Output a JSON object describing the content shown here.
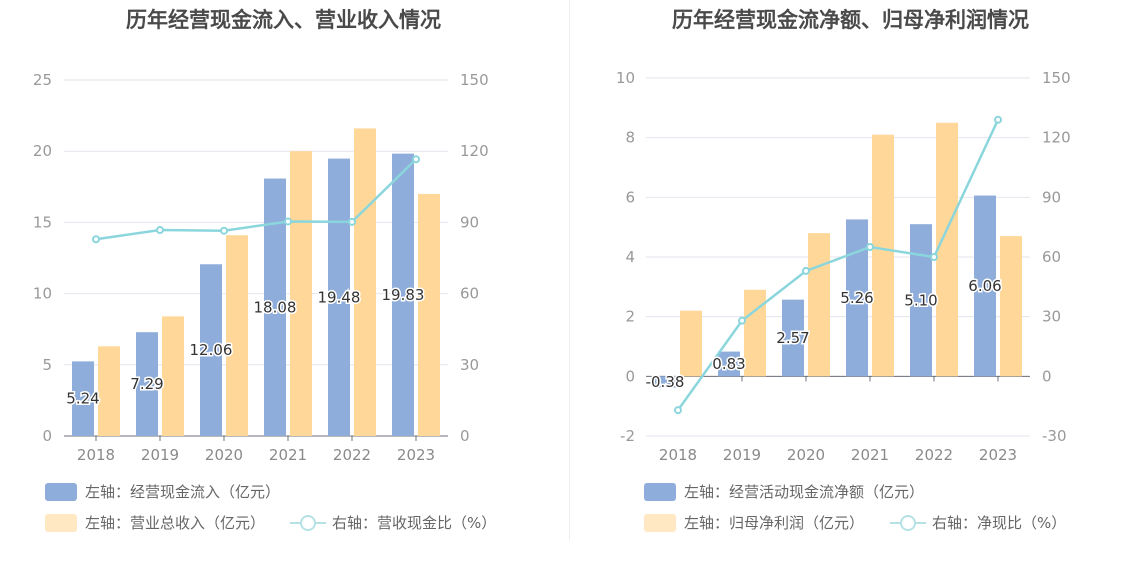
{
  "charts": [
    {
      "title": "历年经营现金流入、营业收入情况",
      "legend": {
        "bar1": "左轴：经营现金流入（亿元）",
        "bar2": "左轴：营业总收入（亿元）",
        "line": "右轴：营收现金比（%）"
      }
    },
    {
      "title": "历年经营现金流净额、归母净利润情况",
      "legend": {
        "bar1": "左轴：经营活动现金流净额（亿元）",
        "bar2": "左轴：归母净利润（亿元）",
        "line": "右轴：净现比（%）"
      }
    }
  ],
  "colors": {
    "bar1": "#8eaddb",
    "bar2": "#ffd899",
    "line": "#8bd6dc",
    "grid": "#e4e6ee"
  },
  "chart_data": [
    {
      "type": "bar",
      "title": "历年经营现金流入、营业收入情况",
      "categories": [
        "2018",
        "2019",
        "2020",
        "2021",
        "2022",
        "2023"
      ],
      "left_axis": {
        "ticks": [
          0,
          5,
          10,
          15,
          20,
          25
        ],
        "min": 0,
        "max": 25
      },
      "right_axis": {
        "ticks": [
          0,
          30,
          60,
          90,
          120,
          150
        ],
        "min": 0,
        "max": 150
      },
      "series": [
        {
          "name": "左轴：经营现金流入（亿元）",
          "type": "bar",
          "axis": "left",
          "values": [
            5.24,
            7.29,
            12.06,
            18.08,
            19.48,
            19.83
          ],
          "labels": [
            "5.24",
            "7.29",
            "12.06",
            "18.08",
            "19.48",
            "19.83"
          ]
        },
        {
          "name": "左轴：营业总收入（亿元）",
          "type": "bar",
          "axis": "left",
          "values": [
            6.3,
            8.4,
            14.1,
            20.0,
            21.6,
            17.0
          ]
        },
        {
          "name": "右轴：营收现金比（%）",
          "type": "line",
          "axis": "right",
          "values": [
            82.9,
            86.8,
            86.5,
            90.4,
            90.2,
            116.6
          ]
        }
      ],
      "grid": true,
      "legend_position": "bottom"
    },
    {
      "type": "bar",
      "title": "历年经营现金流净额、归母净利润情况",
      "categories": [
        "2018",
        "2019",
        "2020",
        "2021",
        "2022",
        "2023"
      ],
      "left_axis": {
        "ticks": [
          -2,
          0,
          2,
          4,
          6,
          8,
          10
        ],
        "min": -2,
        "max": 10
      },
      "right_axis": {
        "ticks": [
          -30,
          0,
          30,
          60,
          90,
          120,
          150
        ],
        "min": -30,
        "max": 150
      },
      "series": [
        {
          "name": "左轴：经营活动现金流净额（亿元）",
          "type": "bar",
          "axis": "left",
          "values": [
            -0.38,
            0.83,
            2.57,
            5.26,
            5.1,
            6.06
          ],
          "labels": [
            "-0.38",
            "0.83",
            "2.57",
            "5.26",
            "5.10",
            "6.06"
          ]
        },
        {
          "name": "左轴：归母净利润（亿元）",
          "type": "bar",
          "axis": "left",
          "values": [
            2.2,
            2.9,
            4.8,
            8.1,
            8.5,
            4.7
          ]
        },
        {
          "name": "右轴：净现比（%）",
          "type": "line",
          "axis": "right",
          "values": [
            -17,
            28,
            53,
            65,
            60,
            129
          ]
        }
      ],
      "grid": true,
      "legend_position": "bottom"
    }
  ]
}
